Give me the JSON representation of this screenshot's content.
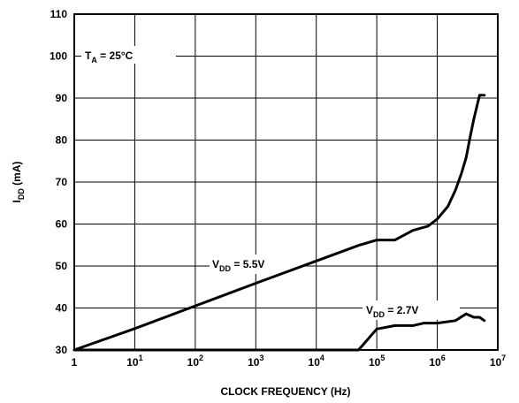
{
  "chart_data": {
    "type": "line",
    "title": "",
    "xlabel": "CLOCK FREQUENCY (Hz)",
    "ylabel": {
      "main": "I",
      "sub": "DD",
      "unit": " (mA)"
    },
    "x_scale": "log",
    "xlim": [
      1,
      10000000
    ],
    "ylim": [
      30,
      110
    ],
    "grid": true,
    "legend": "none",
    "x_ticks": [
      {
        "value": 1,
        "base": "1",
        "exp": ""
      },
      {
        "value": 10,
        "base": "10",
        "exp": "1"
      },
      {
        "value": 100,
        "base": "10",
        "exp": "2"
      },
      {
        "value": 1000,
        "base": "10",
        "exp": "3"
      },
      {
        "value": 10000,
        "base": "10",
        "exp": "4"
      },
      {
        "value": 100000,
        "base": "10",
        "exp": "5"
      },
      {
        "value": 1000000,
        "base": "10",
        "exp": "6"
      },
      {
        "value": 10000000,
        "base": "10",
        "exp": "7"
      }
    ],
    "y_ticks": [
      30,
      40,
      50,
      60,
      70,
      80,
      90,
      100,
      110
    ],
    "annotations": {
      "ta": {
        "main": "T",
        "sub": "A",
        "rest": " = 25°C"
      },
      "vdd55": {
        "main": "V",
        "sub": "DD",
        "rest": " = 5.5V"
      },
      "vdd27": {
        "main": "V",
        "sub": "DD",
        "rest": " = 2.7V"
      }
    },
    "series": [
      {
        "x": [
          1,
          10,
          100,
          1000,
          10000,
          50000,
          100000,
          200000,
          400000,
          700000,
          1000000,
          1500000,
          2000000,
          2500000,
          3000000,
          3500000,
          4000000,
          5000000,
          6000000
        ],
        "y": [
          30,
          35.1,
          40.5,
          45.9,
          51.2,
          54.9,
          56.2,
          56.2,
          58.5,
          59.5,
          61.2,
          64.2,
          68.1,
          72.0,
          75.8,
          80.8,
          84.9,
          90.7,
          90.7
        ]
      },
      {
        "x": [
          1,
          10,
          100,
          1000,
          10000,
          50000,
          100000,
          200000,
          400000,
          600000,
          1000000,
          2000000,
          3000000,
          4000000,
          5000000,
          6000000
        ],
        "y": [
          30,
          30,
          30,
          30,
          30,
          30,
          35.0,
          35.8,
          35.8,
          36.4,
          36.4,
          37.0,
          38.6,
          37.8,
          37.8,
          37.0
        ]
      }
    ]
  }
}
